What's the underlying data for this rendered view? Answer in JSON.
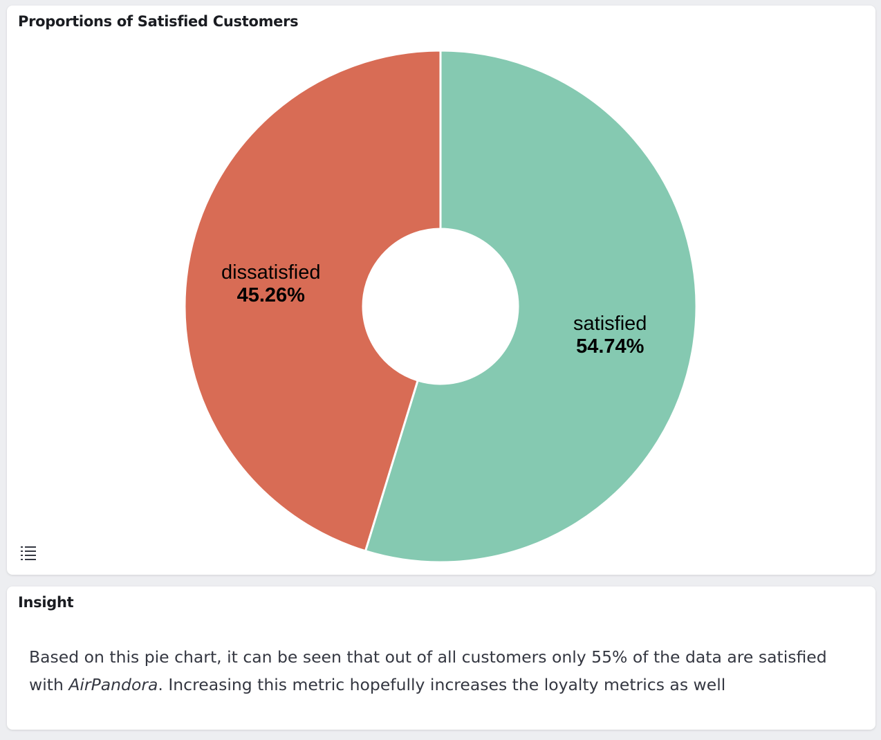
{
  "chart_panel": {
    "title": "Proportions of Satisfied Customers",
    "legend_toggle_icon": "list-icon"
  },
  "chart_data": {
    "type": "pie",
    "title": "Proportions of Satisfied Customers",
    "donut": true,
    "slices": [
      {
        "label": "satisfied",
        "value": 54.74,
        "display": "54.74%",
        "color": "#85c9b1"
      },
      {
        "label": "dissatisfied",
        "value": 45.26,
        "display": "45.26%",
        "color": "#d86c55"
      }
    ]
  },
  "insight_panel": {
    "title": "Insight",
    "text_before": "Based on this pie chart, it can be seen that out of all customers only 55% of the data are satisfied with ",
    "text_emphasis": "AirPandora",
    "text_after": ". Increasing this metric hopefully increases the loyalty metrics as well"
  }
}
